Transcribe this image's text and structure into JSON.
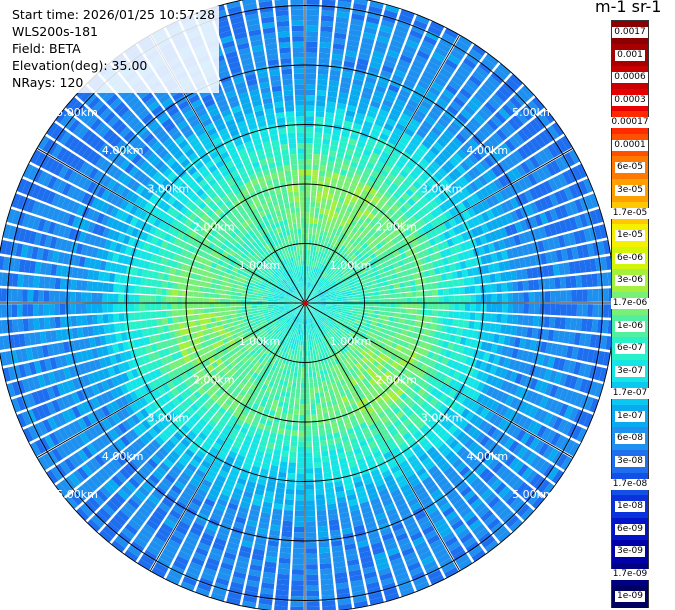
{
  "header": {
    "start_time": "Start time: 2026/01/25 10:57:28",
    "device": "WLS200s-181",
    "field": "Field: BETA",
    "elevation": "Elevation(deg): 35.00",
    "nrays": "NRays: 120"
  },
  "colorbar": {
    "unit_label": "m-1 sr-1",
    "ticks": [
      {
        "label": "0.0017",
        "color": "#8b0000",
        "text_color": "#ffffff"
      },
      {
        "label": "0.001",
        "color": "#a80000",
        "text_color": "#ffffff"
      },
      {
        "label": "0.0006",
        "color": "#c80000",
        "text_color": "#ffffff"
      },
      {
        "label": "0.0003",
        "color": "#e60000",
        "text_color": "#ffffff"
      },
      {
        "label": "0.00017",
        "color": "#ff2a00",
        "text_color": "#ffffff"
      },
      {
        "label": "0.0001",
        "color": "#ff5000",
        "text_color": "#ffffff"
      },
      {
        "label": "6e-05",
        "color": "#ff7800",
        "text_color": "#ffffff"
      },
      {
        "label": "3e-05",
        "color": "#ff9f00",
        "text_color": "#ffffff"
      },
      {
        "label": "1.7e-05",
        "color": "#ffc800",
        "text_color": "#ffffff"
      },
      {
        "label": "1e-05",
        "color": "#f5f000",
        "text_color": "#ffffff"
      },
      {
        "label": "6e-06",
        "color": "#d2f50a",
        "text_color": "#ffffff"
      },
      {
        "label": "3e-06",
        "color": "#a5f03c",
        "text_color": "#ffffff"
      },
      {
        "label": "1.7e-06",
        "color": "#78f078",
        "text_color": "#ffffff"
      },
      {
        "label": "1e-06",
        "color": "#50f0a0",
        "text_color": "#ffffff"
      },
      {
        "label": "6e-07",
        "color": "#28f0c8",
        "text_color": "#ffffff"
      },
      {
        "label": "3e-07",
        "color": "#14e6e6",
        "text_color": "#ffffff"
      },
      {
        "label": "1.7e-07",
        "color": "#0ac8f0",
        "text_color": "#ffffff"
      },
      {
        "label": "1e-07",
        "color": "#0aaaf0",
        "text_color": "#ffffff"
      },
      {
        "label": "6e-08",
        "color": "#1e90f0",
        "text_color": "#ffffff"
      },
      {
        "label": "3e-08",
        "color": "#1e6ef0",
        "text_color": "#ffffff"
      },
      {
        "label": "1.7e-08",
        "color": "#1450e6",
        "text_color": "#ffffff"
      },
      {
        "label": "1e-08",
        "color": "#0a32dc",
        "text_color": "#ffffff"
      },
      {
        "label": "6e-09",
        "color": "#0014c8",
        "text_color": "#ffffff"
      },
      {
        "label": "3e-09",
        "color": "#0000aa",
        "text_color": "#ffffff"
      },
      {
        "label": "1.7e-09",
        "color": "#000082",
        "text_color": "#ffffff"
      },
      {
        "label": "1e-09",
        "color": "#000060",
        "text_color": "#ffffff"
      }
    ]
  },
  "range_rings": [
    {
      "range_km": 1,
      "label": "1.00km"
    },
    {
      "range_km": 2,
      "label": "2.00km"
    },
    {
      "range_km": 3,
      "label": "3.00km"
    },
    {
      "range_km": 4,
      "label": "4.00km"
    },
    {
      "range_km": 5,
      "label": "5.00km"
    }
  ],
  "scan": {
    "max_range_km": 5.2,
    "rays": 120,
    "spoke_step_deg": 30,
    "label_azimuths_deg": [
      -50,
      50,
      130,
      230
    ]
  }
}
